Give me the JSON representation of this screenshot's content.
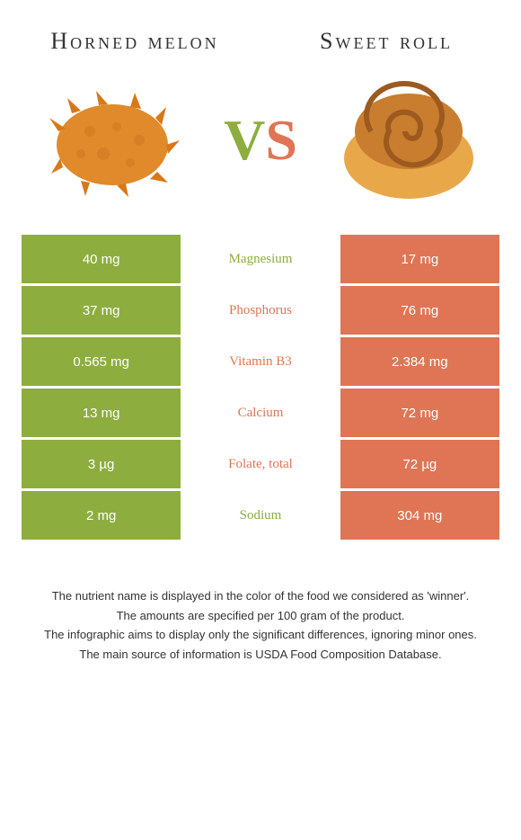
{
  "header": {
    "left_title": "Horned melon",
    "right_title": "Sweet roll",
    "vs_v": "V",
    "vs_s": "S"
  },
  "colors": {
    "left": "#8dad3f",
    "right": "#df7555",
    "background": "#ffffff",
    "text": "#333333"
  },
  "table": {
    "rows": [
      {
        "left": "40 mg",
        "label": "Magnesium",
        "right": "17 mg",
        "winner": "left"
      },
      {
        "left": "37 mg",
        "label": "Phosphorus",
        "right": "76 mg",
        "winner": "right"
      },
      {
        "left": "0.565 mg",
        "label": "Vitamin B3",
        "right": "2.384 mg",
        "winner": "right"
      },
      {
        "left": "13 mg",
        "label": "Calcium",
        "right": "72 mg",
        "winner": "right"
      },
      {
        "left": "3 µg",
        "label": "Folate, total",
        "right": "72 µg",
        "winner": "right"
      },
      {
        "left": "2 mg",
        "label": "Sodium",
        "right": "304 mg",
        "winner": "left"
      }
    ]
  },
  "footer": {
    "line1": "The nutrient name is displayed in the color of the food we considered as 'winner'.",
    "line2": "The amounts are specified per 100 gram of the product.",
    "line3": "The infographic aims to display only the significant differences, ignoring minor ones.",
    "line4": "The main source of information is USDA Food Composition Database."
  }
}
